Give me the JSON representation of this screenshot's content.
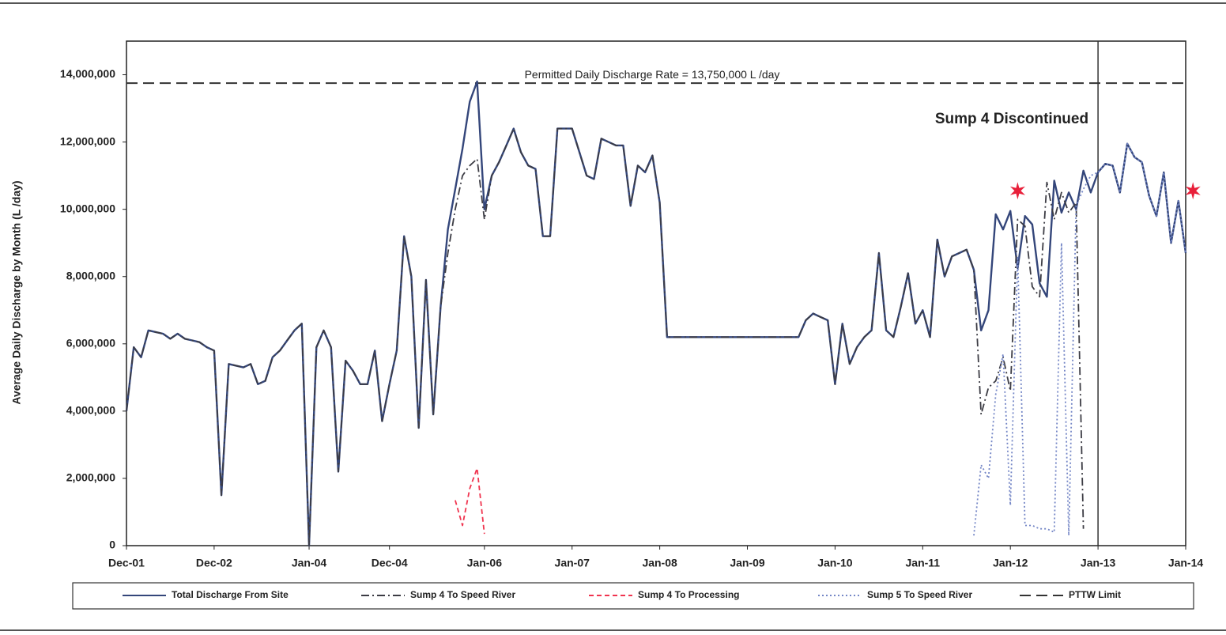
{
  "chart_data": {
    "type": "line",
    "y_label": "Average Daily Discharge by Month (L /day)",
    "x": [
      "Dec-01",
      "Jan-02",
      "Feb-02",
      "Mar-02",
      "Apr-02",
      "May-02",
      "Jun-02",
      "Jul-02",
      "Aug-02",
      "Sep-02",
      "Oct-02",
      "Nov-02",
      "Dec-02",
      "Jan-03",
      "Feb-03",
      "Mar-03",
      "Apr-03",
      "May-03",
      "Jun-03",
      "Jul-03",
      "Aug-03",
      "Sep-03",
      "Oct-03",
      "Nov-03",
      "Dec-03",
      "Jan-04",
      "Feb-04",
      "Mar-04",
      "Apr-04",
      "May-04",
      "Jun-04",
      "Jul-04",
      "Aug-04",
      "Sep-04",
      "Oct-04",
      "Nov-04",
      "Dec-04",
      "Jan-05",
      "Feb-05",
      "Mar-05",
      "Apr-05",
      "May-05",
      "Jun-05",
      "Jul-05",
      "Aug-05",
      "Sep-05",
      "Oct-05",
      "Nov-05",
      "Dec-05",
      "Jan-06",
      "Feb-06",
      "Mar-06",
      "Apr-06",
      "May-06",
      "Jun-06",
      "Jul-06",
      "Aug-06",
      "Sep-06",
      "Oct-06",
      "Nov-06",
      "Dec-06",
      "Jan-07",
      "Feb-07",
      "Mar-07",
      "Apr-07",
      "May-07",
      "Jun-07",
      "Jul-07",
      "Aug-07",
      "Sep-07",
      "Oct-07",
      "Nov-07",
      "Dec-07",
      "Jan-08",
      "Feb-08",
      "Mar-08",
      "Apr-08",
      "May-08",
      "Jun-08",
      "Jul-08",
      "Aug-08",
      "Sep-08",
      "Oct-08",
      "Nov-08",
      "Dec-08",
      "Jan-09",
      "Feb-09",
      "Mar-09",
      "Apr-09",
      "May-09",
      "Jun-09",
      "Jul-09",
      "Aug-09",
      "Sep-09",
      "Oct-09",
      "Nov-09",
      "Dec-09",
      "Jan-10",
      "Feb-10",
      "Mar-10",
      "Apr-10",
      "May-10",
      "Jun-10",
      "Jul-10",
      "Aug-10",
      "Sep-10",
      "Oct-10",
      "Nov-10",
      "Dec-10",
      "Jan-11",
      "Feb-11",
      "Mar-11",
      "Apr-11",
      "May-11",
      "Jun-11",
      "Jul-11",
      "Aug-11",
      "Sep-11",
      "Oct-11",
      "Nov-11",
      "Dec-11",
      "Jan-12",
      "Feb-12",
      "Mar-12",
      "Apr-12",
      "May-12",
      "Jun-12",
      "Jul-12",
      "Aug-12",
      "Sep-12",
      "Oct-12",
      "Nov-12",
      "Dec-12",
      "Jan-13",
      "Feb-13",
      "Mar-13",
      "Apr-13",
      "May-13",
      "Jun-13",
      "Jul-13",
      "Aug-13",
      "Sep-13",
      "Oct-13",
      "Nov-13",
      "Dec-13",
      "Jan-14"
    ],
    "series": [
      {
        "name": "Total Discharge From Site",
        "color": "#34467a",
        "dash": "solid",
        "values": [
          4000000,
          5900000,
          5600000,
          6400000,
          6350000,
          6300000,
          6150000,
          6300000,
          6150000,
          6100000,
          6050000,
          5900000,
          5800000,
          1500000,
          5400000,
          5350000,
          5300000,
          5400000,
          4800000,
          4900000,
          5600000,
          5800000,
          6100000,
          6400000,
          6600000,
          0,
          5900000,
          6400000,
          5900000,
          2200000,
          5500000,
          5200000,
          4800000,
          4800000,
          5800000,
          3700000,
          4800000,
          5800000,
          9200000,
          8000000,
          3500000,
          7900000,
          3900000,
          7100000,
          9400000,
          10600000,
          11800000,
          13200000,
          13800000,
          10000000,
          11000000,
          11400000,
          11900000,
          12400000,
          11700000,
          11300000,
          11200000,
          9200000,
          9200000,
          12400000,
          12400000,
          12400000,
          11700000,
          11000000,
          10900000,
          12100000,
          12000000,
          11900000,
          11900000,
          10100000,
          11300000,
          11100000,
          11600000,
          10200000,
          6200000,
          6200000,
          6200000,
          6200000,
          6200000,
          6200000,
          6200000,
          6200000,
          6200000,
          6200000,
          6200000,
          6200000,
          6200000,
          6200000,
          6200000,
          6200000,
          6200000,
          6200000,
          6200000,
          6700000,
          6900000,
          6800000,
          6700000,
          4800000,
          6600000,
          5400000,
          5900000,
          6200000,
          6400000,
          8700000,
          6400000,
          6200000,
          7100000,
          8100000,
          6600000,
          7000000,
          6200000,
          9100000,
          8000000,
          8600000,
          8700000,
          8800000,
          8200000,
          6400000,
          7000000,
          9850000,
          9400000,
          9950000,
          8250000,
          9800000,
          9550000,
          7800000,
          7400000,
          10850000,
          9900000,
          10500000,
          10000000,
          11150000,
          10500000,
          11100000,
          11350000,
          11300000,
          10500000,
          11950000,
          11550000,
          11400000,
          10400000,
          9800000,
          11100000,
          9000000,
          10250000,
          8700000
        ]
      },
      {
        "name": "Sump 4 To Speed River",
        "color": "#3c3c44",
        "dash": "dashdot",
        "values": [
          4000000,
          5900000,
          5600000,
          6400000,
          6350000,
          6300000,
          6150000,
          6300000,
          6150000,
          6100000,
          6050000,
          5900000,
          5800000,
          1500000,
          5400000,
          5350000,
          5300000,
          5400000,
          4800000,
          4900000,
          5600000,
          5800000,
          6100000,
          6400000,
          6600000,
          0,
          5900000,
          6400000,
          5900000,
          2200000,
          5500000,
          5200000,
          4800000,
          4800000,
          5800000,
          3700000,
          4800000,
          5800000,
          9200000,
          8000000,
          3500000,
          7900000,
          3900000,
          7100000,
          8700000,
          10000000,
          11000000,
          11300000,
          11500000,
          9700000,
          11000000,
          11400000,
          11900000,
          12400000,
          11700000,
          11300000,
          11200000,
          9200000,
          9200000,
          12400000,
          12400000,
          12400000,
          11700000,
          11000000,
          10900000,
          12100000,
          12000000,
          11900000,
          11900000,
          10100000,
          11300000,
          11100000,
          11600000,
          10200000,
          6200000,
          6200000,
          6200000,
          6200000,
          6200000,
          6200000,
          6200000,
          6200000,
          6200000,
          6200000,
          6200000,
          6200000,
          6200000,
          6200000,
          6200000,
          6200000,
          6200000,
          6200000,
          6200000,
          6700000,
          6900000,
          6800000,
          6700000,
          4800000,
          6600000,
          5400000,
          5900000,
          6200000,
          6400000,
          8700000,
          6400000,
          6200000,
          7100000,
          8100000,
          6600000,
          7000000,
          6200000,
          9100000,
          8000000,
          8600000,
          8700000,
          8800000,
          8200000,
          3900000,
          4700000,
          4900000,
          5600000,
          4600000,
          9700000,
          9500000,
          7700000,
          7400000,
          10800000,
          9700000,
          10500000,
          9900000,
          10200000,
          500000,
          null,
          null,
          null,
          null,
          null,
          null,
          null,
          null,
          null,
          null,
          null,
          null,
          null,
          null
        ]
      },
      {
        "name": "Sump 4 To Processing",
        "color": "#f0344f",
        "dash": "dashed",
        "x": [
          "Sep-05",
          "Oct-05",
          "Nov-05",
          "Dec-05",
          "Jan-06"
        ],
        "values": [
          1350000,
          600000,
          1700000,
          2300000,
          350000
        ]
      },
      {
        "name": "Sump 5 To Speed River",
        "color": "#7486c6",
        "dash": "dotted",
        "x": [
          "Aug-11",
          "Sep-11",
          "Oct-11",
          "Nov-11",
          "Dec-11",
          "Jan-12",
          "Feb-12",
          "Mar-12",
          "Apr-12",
          "May-12",
          "Jun-12",
          "Jul-12",
          "Aug-12",
          "Sep-12",
          "Oct-12",
          "Nov-12",
          "Dec-12",
          "Jan-13",
          "Feb-13",
          "Mar-13",
          "Apr-13",
          "May-13",
          "Jun-13",
          "Jul-13",
          "Aug-13",
          "Sep-13",
          "Oct-13",
          "Nov-13",
          "Dec-13",
          "Jan-14"
        ],
        "values": [
          300000,
          2400000,
          2000000,
          4500000,
          5700000,
          1200000,
          8600000,
          600000,
          600000,
          500000,
          500000,
          400000,
          9000000,
          300000,
          10100000,
          10600000,
          11000000,
          11100000,
          11350000,
          11300000,
          10500000,
          11950000,
          11550000,
          11400000,
          10400000,
          9800000,
          11100000,
          9000000,
          10250000,
          8700000
        ]
      }
    ],
    "reference_line": {
      "name": "PTTW Limit",
      "value": 13750000,
      "color": "#333333",
      "dash": "longdash",
      "label": "Permitted Daily Discharge Rate = 13,750,000 L /day"
    },
    "vline": {
      "x": "Jan-13",
      "label": "Sump 4 Discontinued",
      "color": "#333333"
    },
    "markers": [
      {
        "x": "Feb-12",
        "y": 10550000
      },
      {
        "x": "Feb-14",
        "y": 10550000
      }
    ],
    "marker_color": "#e8203a",
    "xlim": [
      "Dec-01",
      "Jan-14"
    ],
    "xticks": [
      "Dec-01",
      "Dec-02",
      "Jan-04",
      "Dec-04",
      "Jan-06",
      "Jan-07",
      "Jan-08",
      "Jan-09",
      "Jan-10",
      "Jan-11",
      "Jan-12",
      "Jan-13",
      "Jan-14"
    ],
    "ylim": [
      0,
      15000000
    ],
    "yticks": [
      0,
      {
        "value": 2000000,
        "label": "2,000,000"
      },
      {
        "value": 4000000,
        "label": "4,000,000"
      },
      {
        "value": 6000000,
        "label": "6,000,000"
      },
      {
        "value": 8000000,
        "label": "8,000,000"
      },
      {
        "value": 10000000,
        "label": "10,000,000"
      },
      {
        "value": 12000000,
        "label": "12,000,000"
      },
      {
        "value": 14000000,
        "label": "14,000,000"
      }
    ],
    "grid": false
  }
}
